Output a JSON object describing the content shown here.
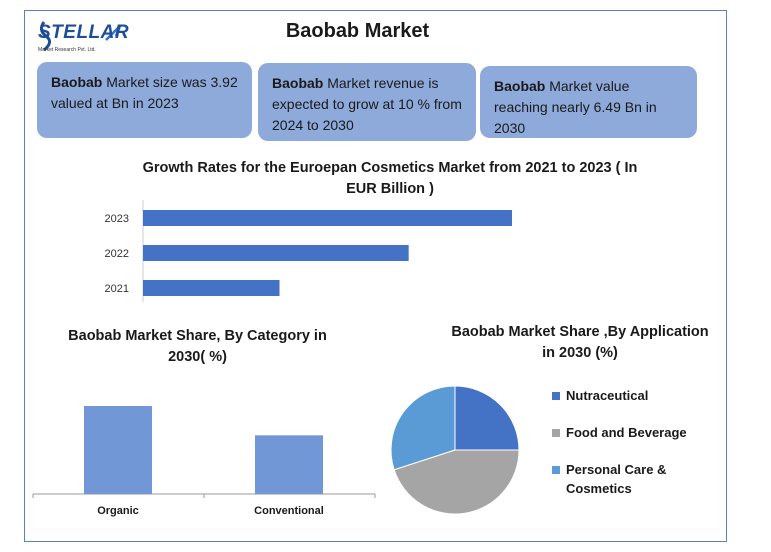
{
  "logo": {
    "name": "STELLAR",
    "tagline": "Market Research Pvt. Ltd."
  },
  "title": "Baobab Market",
  "cards": [
    {
      "bold": "Baobab",
      "text": " Market size was 3.92 valued at Bn in 2023"
    },
    {
      "bold": "Baobab",
      "text": " Market revenue is expected to grow at 10 % from 2024 to 2030"
    },
    {
      "bold": "Baobab",
      "text": " Market value reaching nearly 6.49 Bn in 2030"
    }
  ],
  "colors": {
    "card_bg": "#8eaadb",
    "bar_blue": "#4472c4",
    "bar_light": "#7297d6",
    "pie_blue": "#4472c4",
    "pie_gray": "#a5a5a5",
    "pie_light": "#5b9bd5"
  },
  "chart_data": [
    {
      "type": "bar",
      "orientation": "horizontal",
      "title_line1": "Growth Rates for the Euroepan Cosmetics Market from 2021 to 2023 ( In",
      "title_line2": "EUR Billion )",
      "categories": [
        "2023",
        "2022",
        "2021"
      ],
      "values": [
        100,
        72,
        37
      ],
      "xlim": [
        0,
        100
      ],
      "grid": false
    },
    {
      "type": "bar",
      "orientation": "vertical",
      "title_line1": "Baobab Market Share, By Category in",
      "title_line2": "2030( %)",
      "categories": [
        "Organic",
        "Conventional"
      ],
      "values": [
        60,
        40
      ],
      "ylim": [
        0,
        60
      ],
      "grid": false
    },
    {
      "type": "pie",
      "title_line1": "Baobab Market Share ,By Application",
      "title_line2": "in 2030 (%)",
      "slices": [
        {
          "label": "Nutraceutical",
          "value": 25
        },
        {
          "label": "Food and  Beverage",
          "value": 45
        },
        {
          "label": "Personal Care & Cosmetics",
          "value": 30
        }
      ],
      "legend": "right"
    }
  ]
}
